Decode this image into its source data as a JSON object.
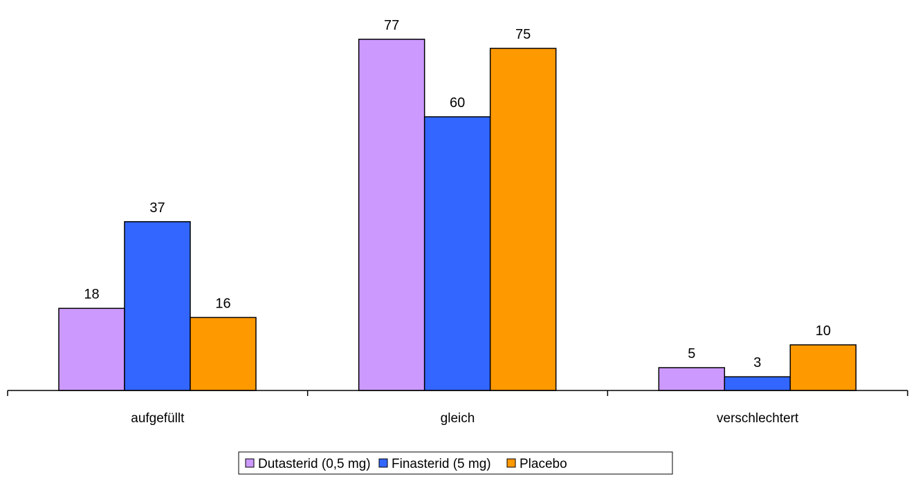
{
  "chart_data": {
    "type": "bar",
    "categories": [
      "aufgefüllt",
      "gleich",
      "verschlechtert"
    ],
    "series": [
      {
        "name": "Dutasterid (0,5 mg)",
        "color": "#cc99ff",
        "values": [
          18,
          77,
          5
        ]
      },
      {
        "name": "Finasterid (5 mg)",
        "color": "#3366ff",
        "values": [
          37,
          60,
          3
        ]
      },
      {
        "name": "Placebo",
        "color": "#ff9900",
        "values": [
          16,
          75,
          10
        ]
      }
    ],
    "ylim": [
      0,
      80
    ],
    "grid": false,
    "legend_position": "bottom",
    "data_labels": true
  }
}
